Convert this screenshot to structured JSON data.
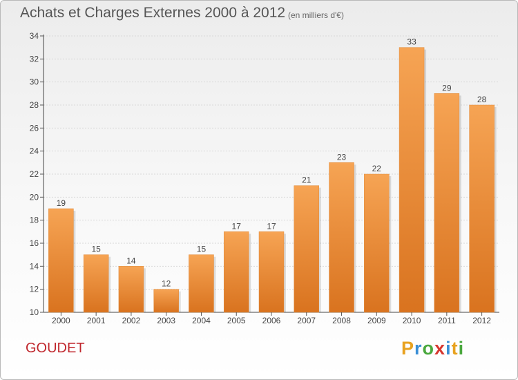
{
  "chart_data": {
    "type": "bar",
    "title": "Achats et Charges Externes 2000 à 2012",
    "subtitle": "(en milliers d'€)",
    "categories": [
      "2000",
      "2001",
      "2002",
      "2003",
      "2004",
      "2005",
      "2006",
      "2007",
      "2008",
      "2009",
      "2010",
      "2011",
      "2012"
    ],
    "values": [
      19,
      15,
      14,
      12,
      15,
      17,
      17,
      21,
      23,
      22,
      33,
      29,
      28
    ],
    "value_labels": [
      "19",
      "15",
      "14",
      "12",
      "15",
      "17",
      "17",
      "21",
      "23",
      "22",
      "33",
      "29",
      "28"
    ],
    "xlabel": "",
    "ylabel": "",
    "ylim": [
      10,
      34
    ],
    "yticks": [
      "10",
      "12",
      "14",
      "16",
      "18",
      "20",
      "22",
      "24",
      "26",
      "28",
      "30",
      "32",
      "34"
    ],
    "bar_color": "#f0923c",
    "grid": true,
    "legend": "none"
  },
  "footer": {
    "commune": "GOUDET",
    "logo": "Proxiti",
    "logo_colors": [
      "#e8a21f",
      "#3a8fd6",
      "#4aa83e",
      "#d6362e",
      "#3a8fd6",
      "#e8a21f",
      "#4aa83e"
    ]
  }
}
